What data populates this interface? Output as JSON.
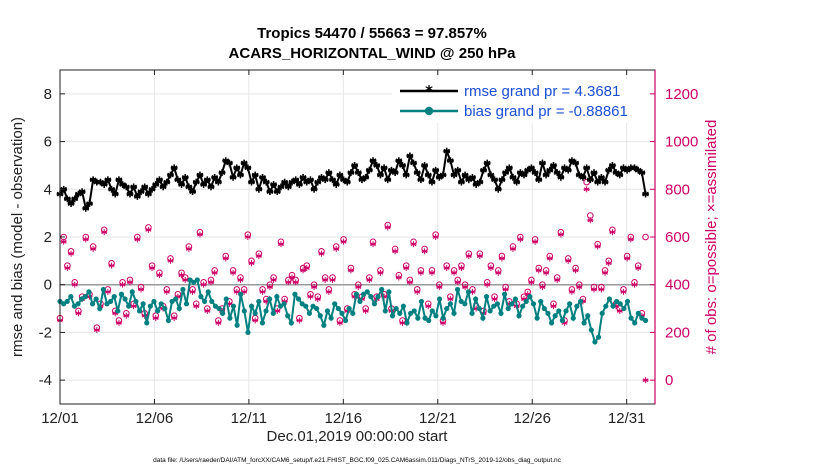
{
  "chart_data": {
    "type": "line",
    "title_line1": "Tropics 54470 / 55663 = 97.857%",
    "title_line2": "ACARS_HORIZONTAL_WIND @ 250 hPa",
    "xlabel": "Dec.01,2019 00:00:00 start",
    "ylabel_left": "rmse and bias (model - observation)",
    "ylabel_right": "# of obs: o=possible; ×=assimilated",
    "xlim": [
      0,
      31.5
    ],
    "ylim_left": [
      -5,
      9
    ],
    "ylim_right": [
      -100,
      1300
    ],
    "x_ticks": [
      {
        "value": 0,
        "label": "12/01"
      },
      {
        "value": 5,
        "label": "12/06"
      },
      {
        "value": 10,
        "label": "12/11"
      },
      {
        "value": 15,
        "label": "12/16"
      },
      {
        "value": 20,
        "label": "12/21"
      },
      {
        "value": 25,
        "label": "12/26"
      },
      {
        "value": 30,
        "label": "12/31"
      }
    ],
    "y_ticks_left": [
      "-4",
      "-2",
      "0",
      "2",
      "4",
      "6",
      "8"
    ],
    "y_ticks_right": [
      "0",
      "200",
      "400",
      "600",
      "800",
      "1000",
      "1200"
    ],
    "legend_position": "top-right",
    "footer": "data file: /Users/raeder/DAI/ATM_forcXX/CAM6_setup/f.e21.FHIST_BGC.f09_025.CAM6assim.011/Diags_NTrS_2019-12/obs_diag_output.nc",
    "colors": {
      "rmse": "#000000",
      "bias": "#008080",
      "obs": "#cc0066",
      "legend_text": "#1a4fd0",
      "zero_line": "#999999",
      "grid": "#e6e6e6"
    },
    "series": [
      {
        "name": "rmse grand pr = 4.3681",
        "axis": "left",
        "marker": "asterisk",
        "values": [
          3.8,
          4.0,
          3.6,
          3.4,
          3.6,
          3.8,
          3.9,
          3.2,
          3.4,
          4.4,
          4.3,
          4.3,
          4.2,
          4.4,
          4.0,
          3.8,
          4.4,
          4.2,
          4.1,
          3.8,
          4.1,
          3.7,
          3.9,
          4.1,
          3.8,
          4.0,
          4.2,
          4.4,
          4.1,
          4.3,
          4.6,
          4.9,
          4.4,
          4.2,
          4.5,
          4.1,
          3.9,
          4.3,
          4.6,
          4.2,
          4.4,
          4.1,
          4.5,
          4.3,
          4.7,
          5.2,
          5.1,
          4.5,
          4.9,
          4.6,
          5.1,
          4.9,
          4.3,
          4.6,
          4.0,
          4.5,
          4.3,
          3.9,
          4.2,
          3.9,
          4.1,
          4.3,
          4.1,
          4.3,
          4.4,
          4.2,
          4.5,
          4.3,
          4.4,
          4.0,
          4.3,
          4.5,
          4.4,
          4.7,
          4.4,
          4.2,
          4.6,
          4.4,
          4.3,
          4.7,
          5.0,
          4.7,
          4.4,
          4.5,
          4.8,
          5.2,
          5.0,
          4.6,
          4.9,
          4.4,
          4.8,
          4.7,
          5.2,
          5.0,
          4.6,
          5.4,
          5.1,
          4.7,
          4.4,
          5.0,
          4.6,
          4.3,
          4.8,
          4.5,
          4.6,
          5.6,
          5.2,
          4.6,
          4.8,
          4.3,
          4.6,
          4.4,
          4.5,
          4.2,
          4.3,
          4.8,
          5.1,
          4.6,
          4.4,
          4.0,
          4.4,
          4.7,
          4.9,
          4.5,
          4.3,
          4.7,
          4.6,
          4.8,
          4.9,
          4.7,
          4.4,
          5.1,
          4.6,
          4.8,
          5.0,
          4.7,
          4.5,
          4.9,
          4.8,
          5.2,
          5.1,
          4.6,
          4.5,
          4.9,
          4.4,
          4.7,
          4.3,
          4.5,
          4.3,
          4.8,
          5.0,
          4.7,
          4.6,
          4.9,
          4.8,
          4.9,
          4.9,
          4.8,
          4.7,
          3.8
        ]
      },
      {
        "name": "bias grand pr = -0.88861",
        "axis": "left",
        "marker": "circle",
        "values": [
          -0.7,
          -0.8,
          -0.7,
          -0.5,
          -0.9,
          -0.8,
          -0.6,
          -0.5,
          -0.3,
          -0.8,
          -0.6,
          -1.0,
          -0.2,
          -0.8,
          -0.7,
          -0.5,
          -1.1,
          -0.4,
          -0.6,
          -0.9,
          -0.3,
          -0.7,
          -1.1,
          -0.8,
          -1.6,
          -0.9,
          -0.7,
          -1.1,
          -0.8,
          -1.0,
          -1.5,
          -0.7,
          -0.6,
          -1.0,
          -0.2,
          -0.8,
          0.2,
          0.1,
          0.2,
          -0.5,
          -0.7,
          -0.3,
          -0.7,
          -0.9,
          -1.0,
          -1.2,
          -0.6,
          -1.4,
          -0.9,
          -1.7,
          -0.4,
          -1.1,
          -2.0,
          -0.9,
          -1.2,
          -0.7,
          -1.6,
          -1.1,
          -0.6,
          -1.2,
          -0.5,
          -0.9,
          -0.8,
          -1.3,
          -1.6,
          -0.4,
          -0.6,
          -0.8,
          -0.9,
          -1.2,
          -0.9,
          -1.0,
          -1.3,
          -1.7,
          -1.1,
          -1.4,
          -0.8,
          -1.0,
          -1.2,
          -1.5,
          -1.0,
          -1.2,
          -0.4,
          -0.7,
          -0.4,
          -0.3,
          -0.5,
          -0.8,
          -0.5,
          -0.2,
          -1.1,
          -0.3,
          -1.3,
          -1.0,
          -1.2,
          -0.9,
          -1.6,
          -1.2,
          -1.1,
          -1.4,
          -0.7,
          -1.4,
          -1.5,
          -1.1,
          -1.3,
          -0.6,
          -1.4,
          -1.0,
          -0.8,
          -1.2,
          -0.2,
          -0.7,
          -0.8,
          -0.3,
          -1.2,
          -0.6,
          -1.0,
          -1.4,
          -0.5,
          -1.1,
          -0.9,
          -0.8,
          -1.2,
          -0.4,
          -1.0,
          -0.8,
          -0.6,
          -1.3,
          -0.9,
          -0.7,
          -0.5,
          -0.8,
          -1.4,
          -0.7,
          -1.0,
          -1.2,
          -1.6,
          -1.3,
          -1.1,
          -1.5,
          -1.1,
          -0.8,
          -1.4,
          -0.9,
          -0.7,
          -1.6,
          -1.3,
          -1.9,
          -2.4,
          -2.2,
          -1.2,
          -0.9,
          -0.6,
          -0.9,
          -0.7,
          -0.8,
          -1.0,
          -0.7,
          -1.4,
          -1.6,
          -1.2,
          -1.4,
          -1.5
        ]
      },
      {
        "name": "obs possible",
        "axis": "right",
        "marker": "open-circle",
        "values": [
          260,
          600,
          480,
          540,
          410,
          290,
          350,
          600,
          360,
          560,
          220,
          320,
          630,
          380,
          490,
          290,
          250,
          410,
          280,
          420,
          320,
          600,
          390,
          280,
          640,
          480,
          270,
          450,
          310,
          380,
          510,
          270,
          360,
          450,
          430,
          560,
          380,
          320,
          620,
          410,
          300,
          420,
          460,
          250,
          300,
          520,
          330,
          460,
          380,
          430,
          380,
          610,
          500,
          260,
          530,
          380,
          340,
          400,
          430,
          300,
          580,
          340,
          420,
          440,
          420,
          260,
          470,
          480,
          360,
          400,
          350,
          540,
          430,
          380,
          430,
          560,
          250,
          590,
          300,
          470,
          360,
          400,
          350,
          300,
          430,
          580,
          350,
          460,
          360,
          650,
          300,
          550,
          440,
          250,
          480,
          420,
          580,
          380,
          460,
          550,
          320,
          460,
          610,
          400,
          250,
          480,
          350,
          460,
          420,
          480,
          400,
          530,
          380,
          310,
          530,
          290,
          410,
          480,
          350,
          460,
          520,
          390,
          330,
          560,
          320,
          600,
          350,
          370,
          420,
          590,
          470,
          400,
          460,
          520,
          320,
          430,
          620,
          250,
          510,
          380,
          470,
          400,
          340,
          830,
          690,
          390,
          570,
          390,
          460,
          500,
          630,
          320,
          300,
          380,
          520,
          600,
          410,
          480,
          280,
          600
        ]
      },
      {
        "name": "obs assimilated",
        "axis": "right",
        "marker": "asterisk",
        "values": [
          250,
          580,
          470,
          530,
          400,
          280,
          340,
          590,
          350,
          550,
          210,
          310,
          620,
          370,
          480,
          280,
          240,
          400,
          270,
          410,
          310,
          590,
          380,
          270,
          630,
          470,
          260,
          440,
          300,
          370,
          500,
          260,
          350,
          440,
          420,
          550,
          370,
          310,
          610,
          400,
          290,
          410,
          450,
          240,
          290,
          510,
          320,
          450,
          370,
          420,
          370,
          600,
          490,
          250,
          520,
          370,
          330,
          390,
          420,
          290,
          570,
          330,
          410,
          430,
          410,
          250,
          460,
          470,
          350,
          390,
          340,
          530,
          420,
          370,
          420,
          550,
          240,
          580,
          290,
          460,
          350,
          390,
          340,
          290,
          420,
          570,
          340,
          450,
          350,
          640,
          290,
          540,
          430,
          240,
          470,
          410,
          570,
          370,
          450,
          540,
          310,
          450,
          600,
          390,
          240,
          470,
          340,
          450,
          410,
          470,
          390,
          520,
          370,
          300,
          520,
          280,
          400,
          470,
          340,
          450,
          510,
          380,
          320,
          550,
          310,
          590,
          340,
          360,
          410,
          580,
          460,
          390,
          450,
          510,
          310,
          420,
          610,
          240,
          500,
          370,
          460,
          390,
          330,
          800,
          670,
          380,
          560,
          380,
          450,
          490,
          620,
          310,
          290,
          370,
          510,
          590,
          400,
          470,
          270,
          0
        ]
      }
    ]
  }
}
